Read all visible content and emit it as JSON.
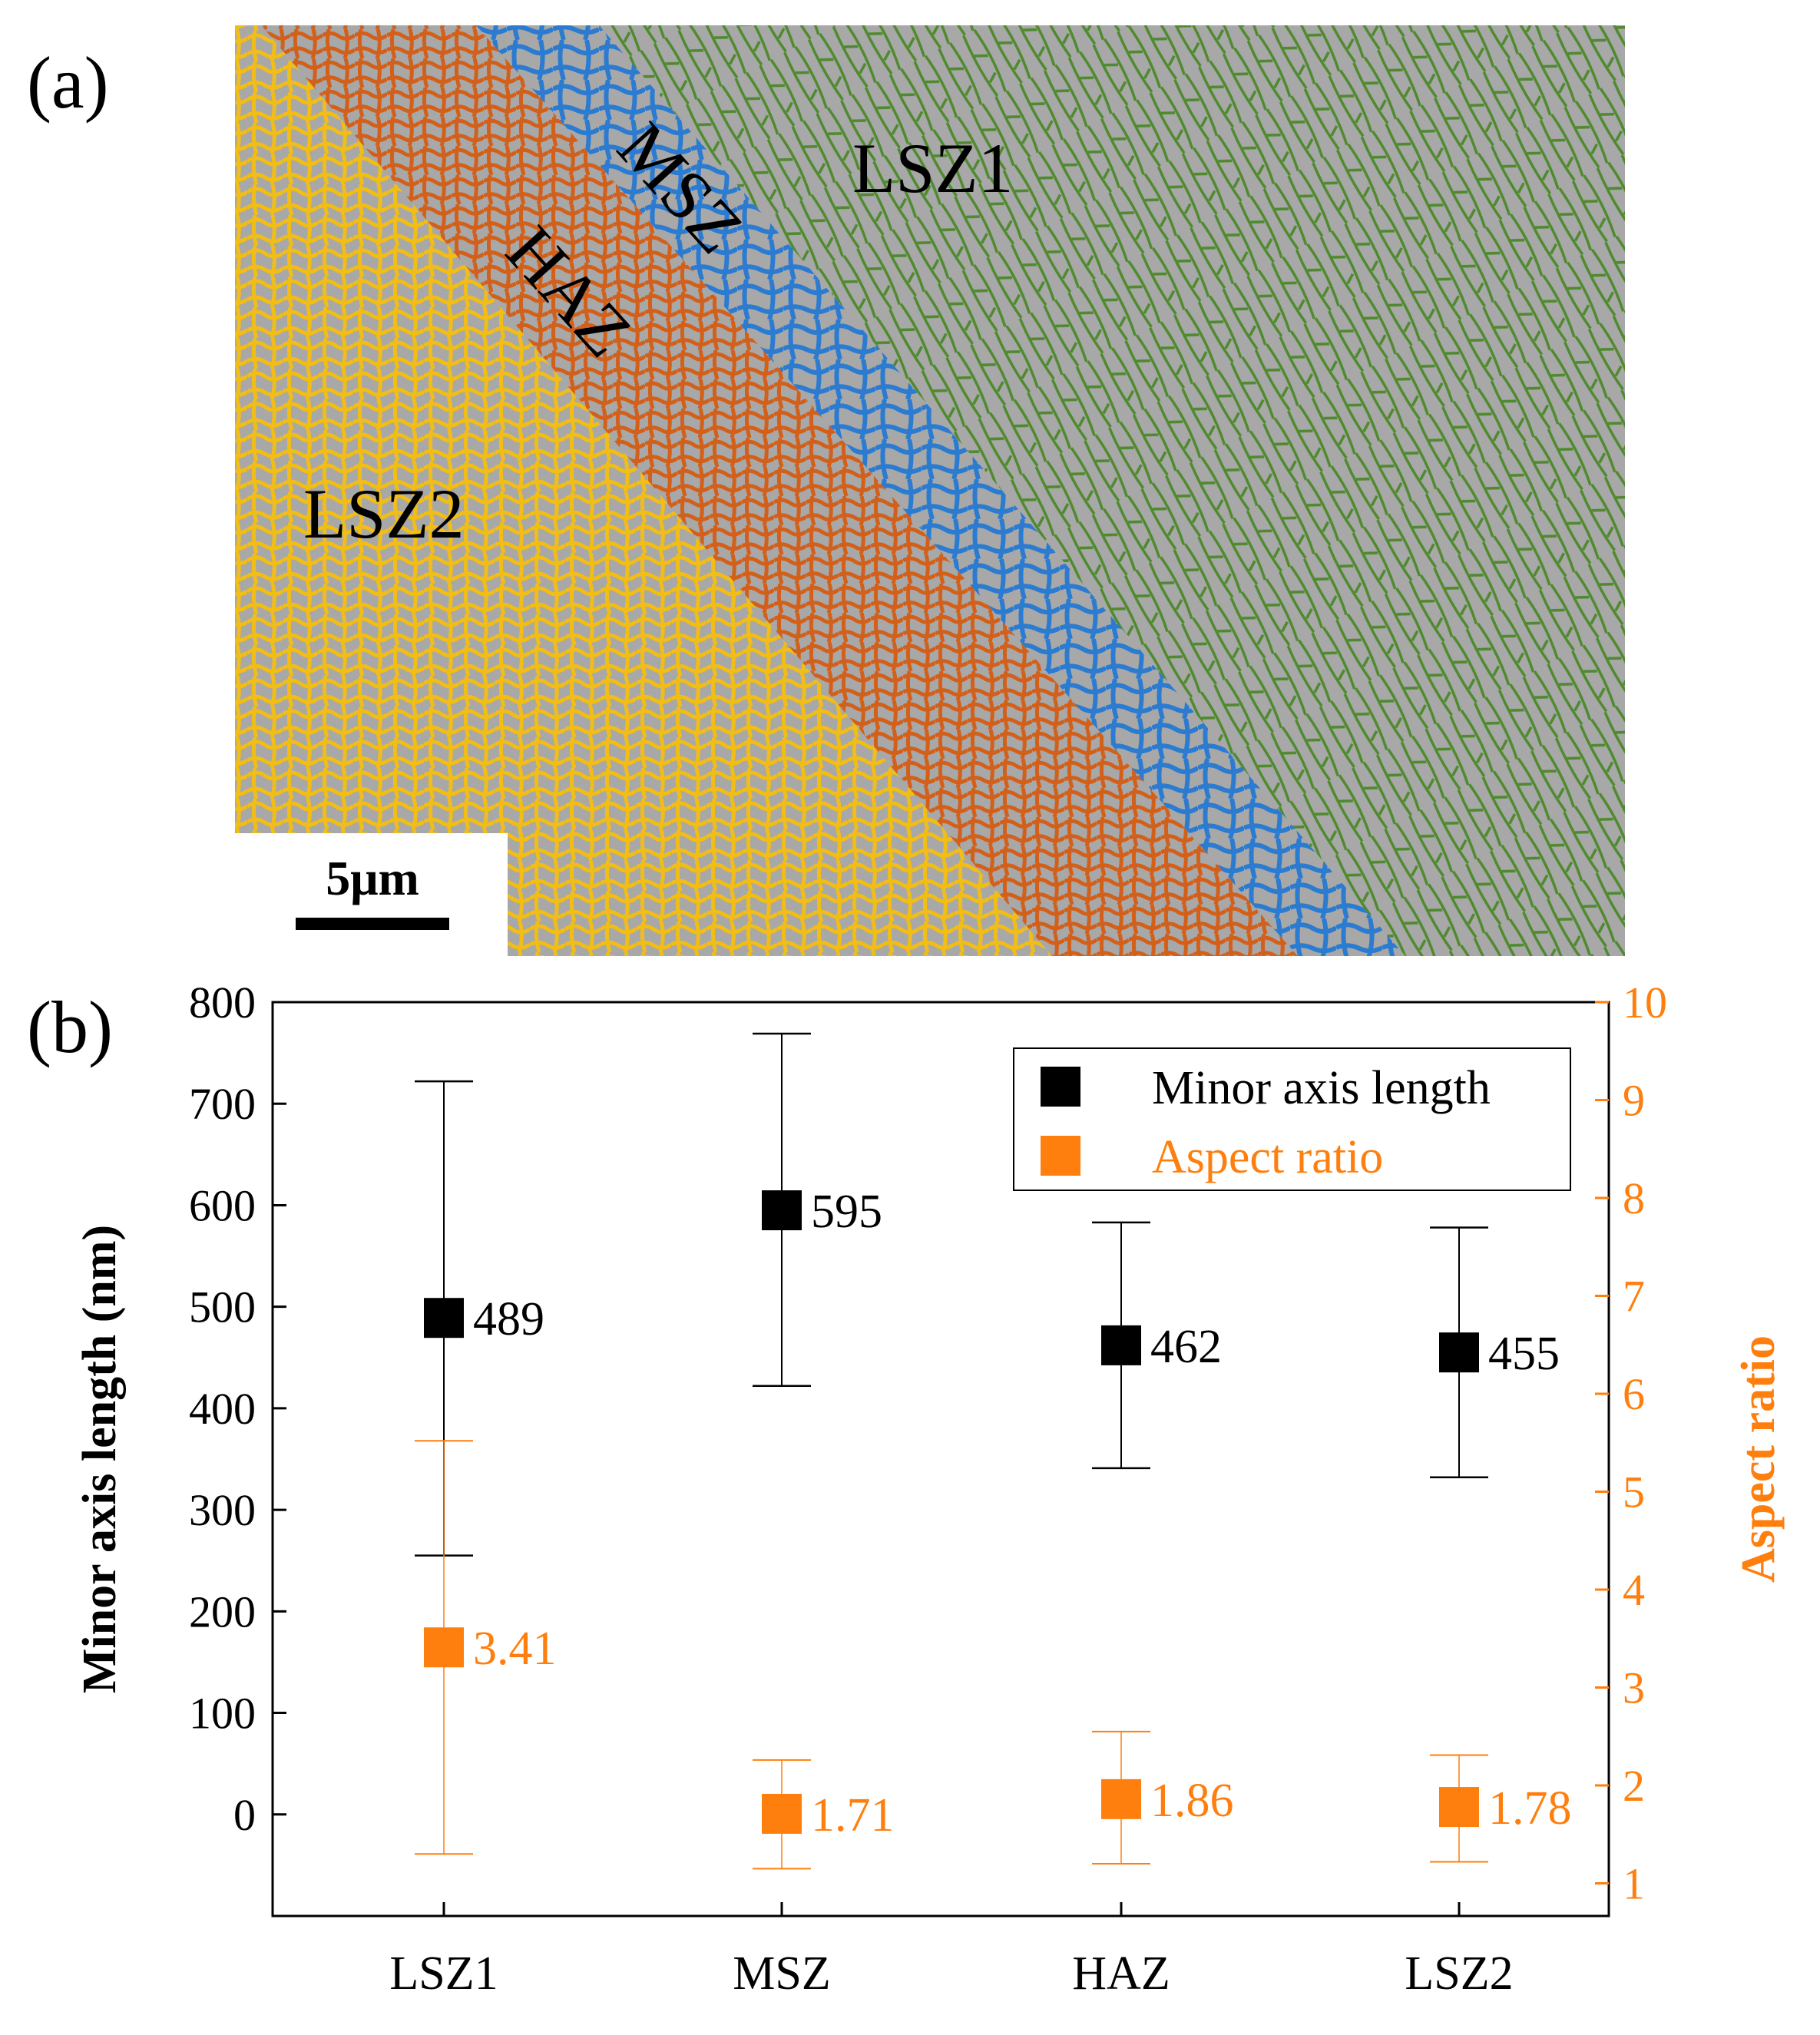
{
  "panel_a": {
    "label": "(a)",
    "zones": [
      "LSZ1",
      "MSZ",
      "HAZ",
      "LSZ2"
    ],
    "scale_bar": "5μm",
    "colors": {
      "LSZ1": "#4f8a2e",
      "MSZ": "#2b7bd0",
      "HAZ": "#d2601a",
      "LSZ2": "#f2bd14",
      "background": "#a8a8a8"
    }
  },
  "panel_b": {
    "label": "(b)"
  },
  "chart_data": {
    "type": "scatter",
    "categories": [
      "LSZ1",
      "MSZ",
      "HAZ",
      "LSZ2"
    ],
    "xlabel": "",
    "ylabel": "Minor axis length (nm)",
    "y2label": "Aspect ratio",
    "ylim": [
      -100,
      800
    ],
    "y2lim": [
      0.6667,
      10
    ],
    "yticks": [
      0,
      100,
      200,
      300,
      400,
      500,
      600,
      700,
      800
    ],
    "y2ticks": [
      1,
      2,
      3,
      4,
      5,
      6,
      7,
      8,
      9,
      10
    ],
    "legend_position": "top-right",
    "series": [
      {
        "name": "Minor axis length",
        "axis": "left",
        "color": "#000000",
        "values": [
          489,
          595,
          462,
          455
        ],
        "err_low": [
          255,
          422,
          341,
          332
        ],
        "err_high": [
          722,
          769,
          583,
          578
        ],
        "data_labels": [
          "489",
          "595",
          "462",
          "455"
        ]
      },
      {
        "name": "Aspect ratio",
        "axis": "right",
        "color": "#ff7f0e",
        "values": [
          3.41,
          1.71,
          1.86,
          1.78
        ],
        "err_low": [
          1.3,
          1.15,
          1.2,
          1.22
        ],
        "err_high": [
          5.52,
          2.26,
          2.55,
          2.31
        ],
        "data_labels": [
          "3.41",
          "1.71",
          "1.86",
          "1.78"
        ]
      }
    ]
  }
}
